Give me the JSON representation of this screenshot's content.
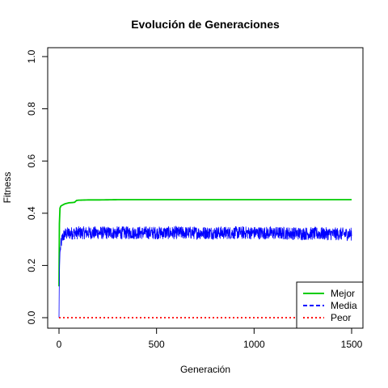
{
  "chart_data": {
    "type": "line",
    "title": "Evolución de Generaciones",
    "xlabel": "Generación",
    "ylabel": "Fitness",
    "xlim": [
      0,
      1500
    ],
    "ylim": [
      0,
      1
    ],
    "x_ticks": [
      {
        "value": 0,
        "label": "0"
      },
      {
        "value": 500,
        "label": "500"
      },
      {
        "value": 1000,
        "label": "1000"
      },
      {
        "value": 1500,
        "label": "1500"
      }
    ],
    "y_ticks": [
      {
        "value": 0.0,
        "label": "0.0"
      },
      {
        "value": 0.2,
        "label": "0.2"
      },
      {
        "value": 0.4,
        "label": "0.4"
      },
      {
        "value": 0.6,
        "label": "0.6"
      },
      {
        "value": 0.8,
        "label": "0.8"
      },
      {
        "value": 1.0,
        "label": "1.0"
      }
    ],
    "grid": false,
    "legend_position": "bottom-right",
    "series": [
      {
        "name": "Mejor",
        "color": "#00cc00",
        "line_style": "solid",
        "x": [
          0,
          1,
          2,
          5,
          10,
          20,
          30,
          50,
          70,
          80,
          90,
          100,
          150,
          200,
          300,
          500,
          1000,
          1500
        ],
        "y": [
          0.12,
          0.25,
          0.36,
          0.42,
          0.428,
          0.432,
          0.436,
          0.44,
          0.441,
          0.442,
          0.449,
          0.45,
          0.451,
          0.451,
          0.452,
          0.452,
          0.452,
          0.452
        ]
      },
      {
        "name": "Media",
        "color": "#0000ff",
        "line_style": "dashed",
        "noisy": true,
        "noise_amplitude": 0.025,
        "x": [
          0,
          1,
          3,
          5,
          10,
          15,
          20,
          30,
          50,
          100,
          500,
          1000,
          1500
        ],
        "y": [
          0.0,
          0.1,
          0.2,
          0.25,
          0.28,
          0.3,
          0.31,
          0.32,
          0.323,
          0.325,
          0.325,
          0.325,
          0.32
        ]
      },
      {
        "name": "Peor",
        "color": "#ff0000",
        "line_style": "dotted",
        "x": [
          0,
          1500
        ],
        "y": [
          0.0,
          0.0
        ]
      }
    ]
  }
}
